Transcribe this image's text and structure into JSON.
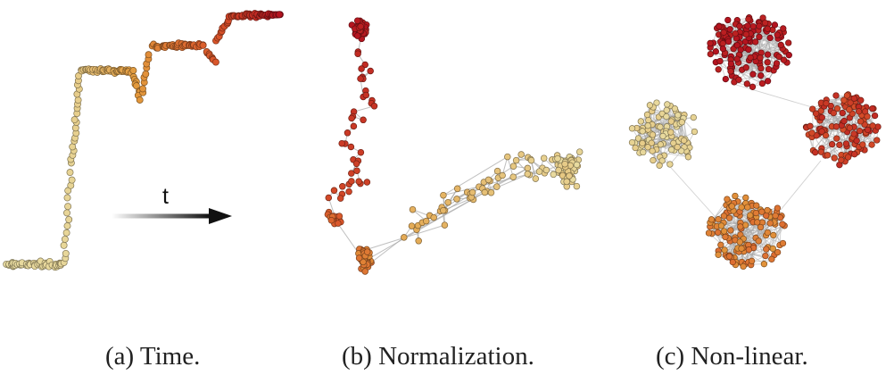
{
  "panels": [
    {
      "id": "a",
      "caption": "(a)  Time.",
      "arrow_label": "t"
    },
    {
      "id": "b",
      "caption": "(b)  Normalization."
    },
    {
      "id": "c",
      "caption": "(c)  Non-linear."
    }
  ],
  "colors": {
    "early": "#e8dba0",
    "mid": "#e39a3c",
    "late": "#d9542a",
    "latest": "#b3121f",
    "edge": "#a9a9a9"
  }
}
